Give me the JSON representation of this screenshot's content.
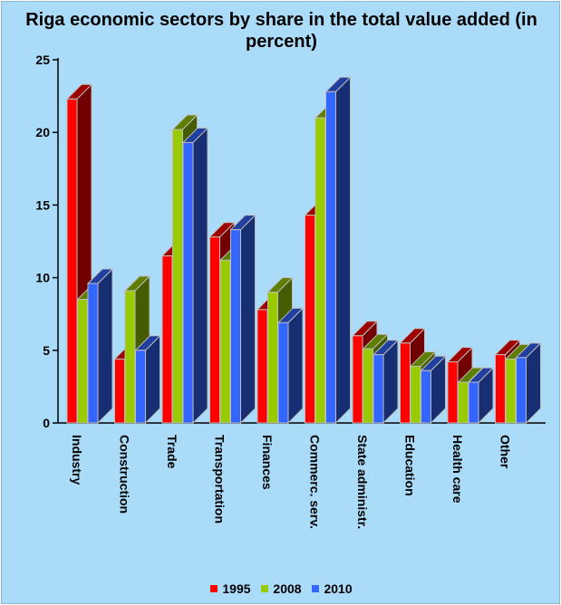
{
  "chart_data": {
    "type": "bar",
    "title": "Riga economic sectors by share in the total value added (in percent)",
    "categories": [
      "Industry",
      "Construction",
      "Trade",
      "Transportation",
      "Finances",
      "Commerc. serv.",
      "State administr.",
      "Education",
      "Health care",
      "Other"
    ],
    "series": [
      {
        "name": "1995",
        "color": "#ff0000",
        "values": [
          22.3,
          4.4,
          11.5,
          12.8,
          7.8,
          14.3,
          6.0,
          5.5,
          4.2,
          4.7
        ]
      },
      {
        "name": "2008",
        "color": "#99cc00",
        "values": [
          8.5,
          9.1,
          20.2,
          11.2,
          9.0,
          21.0,
          5.1,
          3.9,
          2.8,
          4.4
        ]
      },
      {
        "name": "2010",
        "color": "#3366ff",
        "values": [
          9.6,
          5.0,
          19.3,
          13.3,
          6.9,
          22.8,
          4.7,
          3.6,
          2.8,
          4.5
        ]
      }
    ],
    "y_ticks": [
      "0",
      "5",
      "10",
      "15",
      "20",
      "25"
    ],
    "ylim": [
      0,
      25
    ],
    "grid": false,
    "legend_position": "bottom",
    "style": "3d-bar",
    "background_color": "#aadcfa"
  }
}
